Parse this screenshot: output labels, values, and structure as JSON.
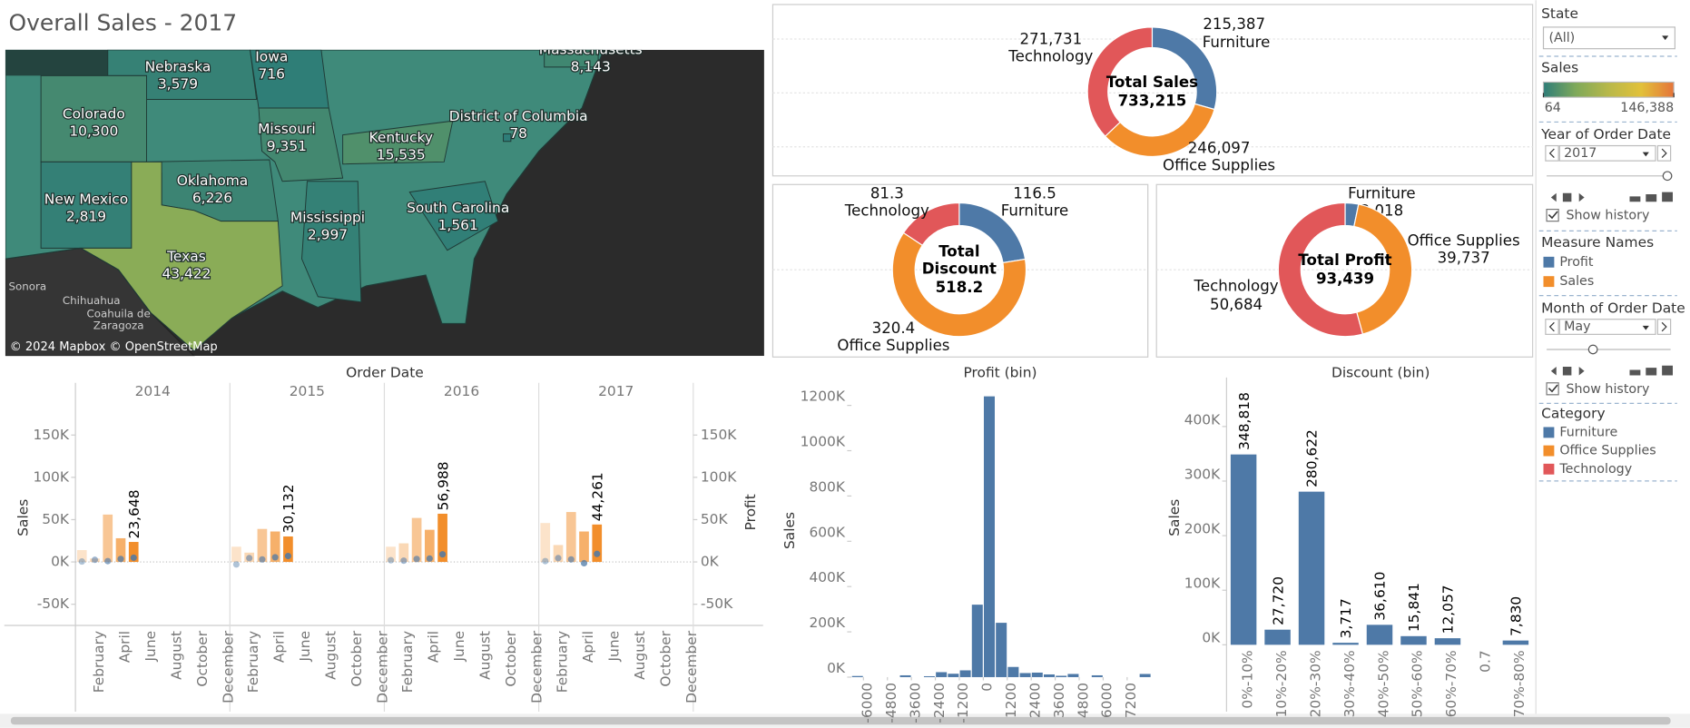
{
  "title": "Overall Sales - 2017",
  "chart_data": [
    {
      "type": "map",
      "attribution": "© 2024 Mapbox © OpenStreetMap",
      "place_labels": [
        "Sonora",
        "Chihuahua",
        "Coahuila de",
        "Zaragoza"
      ],
      "regions": [
        "Nebraska",
        "Iowa",
        "Colorado",
        "Missouri",
        "Kentucky",
        "District of Columbia",
        "Oklahoma",
        "New Mexico",
        "Mississippi",
        "South Carolina",
        "Texas",
        "Massachusetts"
      ],
      "values": [
        3579,
        716,
        10300,
        9351,
        15535,
        78,
        6226,
        2819,
        2997,
        1561,
        43422,
        8143
      ],
      "value_labels": [
        "3,579",
        "716",
        "10,300",
        "9,351",
        "15,535",
        "78",
        "6,226",
        "2,819",
        "2,997",
        "1,561",
        "43,422",
        "8,143"
      ],
      "colorbar": {
        "title": "Sales",
        "ticks": [
          64,
          {
            "value": 146388,
            "label": "146,388"
          }
        ],
        "colors": [
          "#2e7d78",
          "#7fa95a",
          "#b8b84a",
          "#e2c13a",
          "#e5743a"
        ]
      }
    },
    {
      "type": "donut",
      "center_lines": [
        "Total Sales",
        "733,215"
      ],
      "categories": [
        "Furniture",
        "Office Supplies",
        "Technology"
      ],
      "values": [
        215387,
        246097,
        271731
      ],
      "value_labels": [
        "215,387",
        "246,097",
        "271,731"
      ],
      "colors": [
        "#4e79a7",
        "#f28e2b",
        "#e15759"
      ]
    },
    {
      "type": "donut",
      "center_lines": [
        "Total",
        "Discount",
        "518.2"
      ],
      "categories": [
        "Furniture",
        "Office Supplies",
        "Technology"
      ],
      "values": [
        116.5,
        320.4,
        81.3
      ],
      "colors": [
        "#4e79a7",
        "#f28e2b",
        "#e15759"
      ]
    },
    {
      "type": "donut",
      "center_lines": [
        "Total Profit",
        "93,439"
      ],
      "categories": [
        "Furniture",
        "Office Supplies",
        "Technology"
      ],
      "values": [
        3018,
        39737,
        50684
      ],
      "value_labels": [
        "3,018",
        "39,737",
        "50,684"
      ],
      "colors": [
        "#4e79a7",
        "#f28e2b",
        "#e15759"
      ]
    },
    {
      "type": "bar",
      "title": "Order Date",
      "panels": [
        "2014",
        "2015",
        "2016",
        "2017"
      ],
      "categories": [
        null,
        "February",
        null,
        "April",
        null,
        "June",
        null,
        "August",
        null,
        "October",
        null,
        "December"
      ],
      "ylabel": "Sales",
      "y2label": "Profit",
      "ylim": [
        -75000,
        190000
      ],
      "yticks": [
        {
          "value": -50000,
          "label": "-50K"
        },
        {
          "value": 0,
          "label": "0K"
        },
        {
          "value": 50000,
          "label": "50K"
        },
        {
          "value": 100000,
          "label": "100K"
        },
        {
          "value": 150000,
          "label": "150K"
        }
      ],
      "y2lim": [
        -75000,
        190000
      ],
      "y2ticks": [
        {
          "value": -50000,
          "label": "-50K"
        },
        {
          "value": 0,
          "label": "0K"
        },
        {
          "value": 50000,
          "label": "50K"
        },
        {
          "value": 100000,
          "label": "100K"
        },
        {
          "value": 150000,
          "label": "150K"
        }
      ],
      "series": [
        {
          "name": "Sales",
          "color": "#f28e2b",
          "values": [
            [
              14000,
              4000,
              56000,
              28000,
              23648,
              null,
              null,
              null,
              null,
              null,
              null,
              null
            ],
            [
              18000,
              11000,
              39000,
              36000,
              30132,
              null,
              null,
              null,
              null,
              null,
              null,
              null
            ],
            [
              18000,
              22000,
              52000,
              38000,
              56988,
              null,
              null,
              null,
              null,
              null,
              null,
              null
            ],
            [
              46000,
              20000,
              59000,
              36000,
              44261,
              null,
              null,
              null,
              null,
              null,
              null,
              null
            ]
          ],
          "value_labels": [
            [
              null,
              null,
              null,
              null,
              "23,648",
              null,
              null,
              null,
              null,
              null,
              null,
              null
            ],
            [
              null,
              null,
              null,
              null,
              "30,132",
              null,
              null,
              null,
              null,
              null,
              null,
              null
            ],
            [
              null,
              null,
              null,
              null,
              "56,988",
              null,
              null,
              null,
              null,
              null,
              null,
              null
            ],
            [
              null,
              null,
              null,
              null,
              "44,261",
              null,
              null,
              null,
              null,
              null,
              null,
              null
            ]
          ]
        },
        {
          "name": "Profit",
          "color": "#4e79a7",
          "axis": "y2",
          "values": [
            [
              500,
              2500,
              1000,
              3500,
              5000,
              null,
              null,
              null,
              null,
              null,
              null,
              null
            ],
            [
              -3000,
              4500,
              3000,
              5500,
              7000,
              null,
              null,
              null,
              null,
              null,
              null,
              null
            ],
            [
              2000,
              1500,
              3500,
              4000,
              9000,
              null,
              null,
              null,
              null,
              null,
              null,
              null
            ],
            [
              1000,
              4500,
              3000,
              -1500,
              9500,
              null,
              null,
              null,
              null,
              null,
              null,
              null
            ]
          ]
        }
      ]
    },
    {
      "type": "histogram",
      "title": "Profit (bin)",
      "ylabel": "Sales",
      "color": "#4e79a7",
      "bins": [
        -6600,
        -6000,
        -5400,
        -4800,
        -4200,
        -3600,
        -3000,
        -2400,
        -1800,
        -1200,
        -600,
        0,
        600,
        1200,
        1800,
        2400,
        3000,
        3600,
        4200,
        4800,
        5400,
        6000,
        6600,
        7200,
        7800,
        8400
      ],
      "values": [
        5000,
        0,
        0,
        0,
        8000,
        0,
        4000,
        22000,
        15000,
        30000,
        320000,
        1240000,
        240000,
        45000,
        18000,
        20000,
        12000,
        6000,
        14000,
        0,
        8000,
        0,
        0,
        0,
        14000
      ],
      "xlim": [
        -6600,
        8400
      ],
      "xticks": [
        -6000,
        -4800,
        -3600,
        -2400,
        -1200,
        0,
        1200,
        2400,
        3600,
        4800,
        6000,
        7200
      ],
      "ylim": [
        0,
        1290000
      ],
      "yticks": [
        {
          "value": 0,
          "label": "0K"
        },
        {
          "value": 200000,
          "label": "200K"
        },
        {
          "value": 400000,
          "label": "400K"
        },
        {
          "value": 600000,
          "label": "600K"
        },
        {
          "value": 800000,
          "label": "800K"
        },
        {
          "value": 1000000,
          "label": "1000K"
        },
        {
          "value": 1200000,
          "label": "1200K"
        }
      ]
    },
    {
      "type": "bar",
      "title": "Discount (bin)",
      "ylabel": "Sales",
      "color": "#4e79a7",
      "categories": [
        "0%-10%",
        "10%-20%",
        "20%-30%",
        "30%-40%",
        "40%-50%",
        "50%-60%",
        "60%-70%",
        "0.7",
        "70%-80%"
      ],
      "values": [
        348818,
        27720,
        280622,
        3717,
        36610,
        15841,
        12057,
        null,
        7830
      ],
      "value_labels": [
        "348,818",
        "27,720",
        "280,622",
        "3,717",
        "36,610",
        "15,841",
        "12,057",
        null,
        "7,830"
      ],
      "ylim": [
        0,
        480000
      ],
      "yticks": [
        {
          "value": 0,
          "label": "0K"
        },
        {
          "value": 100000,
          "label": "100K"
        },
        {
          "value": 200000,
          "label": "200K"
        },
        {
          "value": 300000,
          "label": "300K"
        },
        {
          "value": 400000,
          "label": "400K"
        }
      ]
    }
  ],
  "filters": {
    "state": {
      "label": "State",
      "value": "(All)"
    },
    "year": {
      "label": "Year of Order Date",
      "value": "2017",
      "history": "Show history"
    },
    "measure_names": {
      "label": "Measure Names"
    },
    "month": {
      "label": "Month of Order Date",
      "value": "May",
      "history": "Show history"
    },
    "category": {
      "label": "Category"
    }
  }
}
